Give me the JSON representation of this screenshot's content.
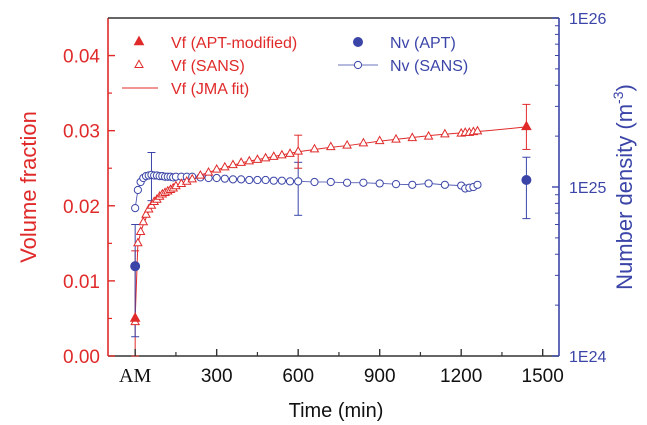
{
  "colors": {
    "vf": "#e02a2a",
    "nv": "#3b45a8",
    "axis": "#333333"
  },
  "chart_data": {
    "type": "scatter",
    "title": "",
    "xlabel": "Time (min)",
    "ylabel": "Volume fraction",
    "y2label_base": "Number density (m",
    "y2label_sup": "-3",
    "y2label_end": ")",
    "xlim": [
      -100,
      1560
    ],
    "ylim": [
      0,
      0.045
    ],
    "y2lim": [
      1e+24,
      1e+26
    ],
    "y2scale": "log",
    "xticks": [
      0,
      300,
      600,
      900,
      1200,
      1500
    ],
    "xtick_labels": [
      "AM",
      "300",
      "600",
      "900",
      "1200",
      "1500"
    ],
    "yticks": [
      0,
      0.01,
      0.02,
      0.03,
      0.04
    ],
    "ytick_labels": [
      "0.00",
      "0.01",
      "0.02",
      "0.03",
      "0.04"
    ],
    "y2ticks": [
      1e+24,
      1e+25,
      1e+26
    ],
    "y2tick_labels": [
      "1E24",
      "1E25",
      "1E26"
    ],
    "grid": false,
    "legend_placement": "top",
    "series": [
      {
        "name": "Vf (APT-modified)",
        "axis": "left",
        "marker": "filled-triangle",
        "color": "#e02a2a",
        "x": [
          0,
          1440
        ],
        "y": [
          0.005,
          0.0305
        ],
        "err": [
          0.009,
          0.003
        ]
      },
      {
        "name": "Vf (SANS)",
        "axis": "left",
        "marker": "open-triangle",
        "color": "#e02a2a",
        "x": [
          0,
          10,
          20,
          30,
          40,
          50,
          60,
          70,
          80,
          90,
          100,
          110,
          120,
          130,
          140,
          150,
          170,
          190,
          210,
          240,
          270,
          300,
          330,
          360,
          390,
          420,
          450,
          480,
          510,
          540,
          570,
          600,
          660,
          720,
          780,
          840,
          900,
          960,
          1020,
          1080,
          1140,
          1200,
          1215,
          1230,
          1245,
          1260
        ],
        "y": [
          0.0045,
          0.015,
          0.0165,
          0.0178,
          0.0188,
          0.0195,
          0.02,
          0.0205,
          0.0208,
          0.0212,
          0.0215,
          0.0217,
          0.0219,
          0.0221,
          0.0223,
          0.0226,
          0.0229,
          0.0232,
          0.0235,
          0.024,
          0.0244,
          0.0248,
          0.0251,
          0.0254,
          0.0257,
          0.0259,
          0.0261,
          0.0263,
          0.0265,
          0.0267,
          0.0269,
          0.0272,
          0.0275,
          0.0278,
          0.028,
          0.0283,
          0.0286,
          0.0288,
          0.029,
          0.0292,
          0.0295,
          0.0296,
          0.0297,
          0.0297,
          0.0298,
          0.0299
        ],
        "err_points": [
          {
            "x": 600,
            "y": 0.0272,
            "err": 0.0022
          }
        ]
      },
      {
        "name": "Vf (JMA fit)",
        "axis": "left",
        "line": "solid",
        "color": "#e02a2a",
        "x": [
          0,
          10,
          25,
          50,
          75,
          100,
          150,
          200,
          250,
          300,
          400,
          500,
          600,
          700,
          800,
          900,
          1000,
          1100,
          1200,
          1300,
          1440
        ],
        "y": [
          0.005,
          0.015,
          0.017,
          0.0193,
          0.0206,
          0.0215,
          0.0226,
          0.0235,
          0.0242,
          0.0248,
          0.0258,
          0.0265,
          0.0272,
          0.0277,
          0.0281,
          0.0286,
          0.029,
          0.0294,
          0.0297,
          0.03,
          0.0305
        ]
      },
      {
        "name": "Nv (APT)",
        "axis": "right",
        "marker": "filled-circle",
        "color": "#3b45a8",
        "x": [
          0,
          1440
        ],
        "y": [
          3.4e+24,
          1.1e+25
        ],
        "err_low": [
          1.3e+24,
          6.5e+24
        ],
        "err_high": [
          6e+24,
          1.5e+25
        ]
      },
      {
        "name": "Nv (SANS)",
        "axis": "right",
        "marker": "open-circle",
        "line": "thin",
        "color": "#3b45a8",
        "x": [
          0,
          10,
          20,
          30,
          40,
          50,
          60,
          70,
          80,
          90,
          100,
          110,
          120,
          130,
          140,
          150,
          170,
          190,
          210,
          240,
          270,
          300,
          330,
          360,
          390,
          420,
          450,
          480,
          510,
          540,
          570,
          600,
          660,
          720,
          780,
          840,
          900,
          960,
          1020,
          1080,
          1140,
          1200,
          1215,
          1230,
          1245,
          1260
        ],
        "y": [
          7.5e+24,
          9.6e+24,
          1.07e+25,
          1.13e+25,
          1.16e+25,
          1.17e+25,
          1.18e+25,
          1.17e+25,
          1.17e+25,
          1.16e+25,
          1.16e+25,
          1.15e+25,
          1.15e+25,
          1.15e+25,
          1.14e+25,
          1.15e+25,
          1.15e+25,
          1.15e+25,
          1.15e+25,
          1.14e+25,
          1.13e+25,
          1.13e+25,
          1.12e+25,
          1.11e+25,
          1.11e+25,
          1.1e+25,
          1.1e+25,
          1.1e+25,
          1.09e+25,
          1.09e+25,
          1.08e+25,
          1.08e+25,
          1.07e+25,
          1.07e+25,
          1.06e+25,
          1.06e+25,
          1.05e+25,
          1.04e+25,
          1.03e+25,
          1.05e+25,
          1.03e+25,
          1.02e+25,
          9.8e+24,
          9.9e+24,
          1e+25,
          1.03e+25
        ],
        "err_points": [
          {
            "x": 60,
            "low": 8.3e+24,
            "high": 1.6e+25
          },
          {
            "x": 600,
            "low": 6.8e+24,
            "high": 1.4e+25
          }
        ]
      }
    ]
  }
}
